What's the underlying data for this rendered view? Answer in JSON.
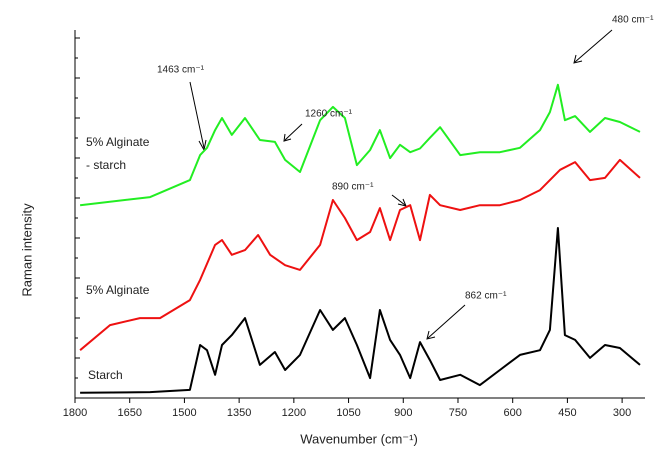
{
  "chart_data": {
    "type": "line",
    "xlabel": "Wavenumber (cm⁻¹)",
    "ylabel": "Raman intensity",
    "xlim": [
      1800,
      240
    ],
    "xticks": [
      1800,
      1650,
      1500,
      1350,
      1200,
      1050,
      900,
      750,
      600,
      450,
      300
    ],
    "ylim": [
      0,
      100
    ],
    "annotations": [
      "1463 cm⁻¹",
      "1260 cm⁻¹",
      "890 cm⁻¹",
      "862 cm⁻¹",
      "480 cm⁻¹"
    ],
    "series": [
      {
        "name_lines": [
          "5% Alginate",
          "- starch"
        ],
        "color": "#22ee22",
        "x": [
          1786,
          1594,
          1485,
          1457,
          1438,
          1416,
          1397,
          1370,
          1334,
          1293,
          1252,
          1224,
          1183,
          1128,
          1093,
          1060,
          1027,
          991,
          964,
          936,
          909,
          881,
          854,
          827,
          799,
          744,
          690,
          635,
          580,
          525,
          498,
          476,
          457,
          429,
          388,
          347,
          306,
          251
        ],
        "values": [
          52.4,
          54.6,
          59.2,
          66,
          68,
          72.8,
          76.1,
          71.5,
          76.1,
          70.1,
          69.6,
          64.7,
          61.4,
          75.5,
          79.1,
          76.1,
          63.3,
          67.4,
          72.8,
          65.2,
          68.8,
          66.8,
          67.8,
          70.7,
          73.6,
          66,
          66.8,
          66.8,
          68,
          72.8,
          77.7,
          85.1,
          75.5,
          76.6,
          72.3,
          76.1,
          75,
          72.3
        ]
      },
      {
        "name_lines": [
          "5% Alginate"
        ],
        "color": "#ee1111",
        "x": [
          1786,
          1704,
          1622,
          1567,
          1485,
          1457,
          1416,
          1397,
          1370,
          1334,
          1298,
          1265,
          1224,
          1183,
          1128,
          1093,
          1060,
          1027,
          991,
          964,
          936,
          909,
          881,
          854,
          827,
          799,
          744,
          690,
          635,
          580,
          525,
          470,
          429,
          388,
          347,
          306,
          251
        ],
        "values": [
          13,
          19.8,
          21.7,
          21.7,
          26.6,
          32.1,
          41.6,
          42.9,
          38.9,
          40.2,
          44.3,
          38.9,
          36.1,
          34.8,
          41.6,
          53.8,
          48.9,
          42.9,
          45.1,
          51.6,
          42.9,
          51.1,
          52.4,
          42.9,
          55.2,
          52.4,
          51.1,
          52.4,
          52.4,
          53.8,
          56.5,
          62,
          64.1,
          59.2,
          59.8,
          64.7,
          59.8
        ]
      },
      {
        "name_lines": [
          "Starch"
        ],
        "color": "#000000",
        "x": [
          1786,
          1594,
          1485,
          1457,
          1438,
          1416,
          1397,
          1370,
          1334,
          1293,
          1252,
          1224,
          1183,
          1128,
          1093,
          1060,
          1027,
          991,
          964,
          936,
          909,
          881,
          854,
          827,
          799,
          744,
          690,
          635,
          580,
          525,
          498,
          476,
          457,
          429,
          388,
          347,
          306,
          251
        ],
        "values": [
          1.4,
          1.6,
          2.2,
          14.4,
          13,
          6.3,
          14.4,
          17.1,
          21.7,
          9,
          12.5,
          7.6,
          11.7,
          23.9,
          18.5,
          21.7,
          14.4,
          5.4,
          23.9,
          15.8,
          11.7,
          5.4,
          15.2,
          10.3,
          4.9,
          6.3,
          3.5,
          7.6,
          11.7,
          13,
          18.5,
          46.2,
          17.1,
          15.8,
          10.9,
          14.4,
          13.6,
          9
        ]
      }
    ]
  }
}
